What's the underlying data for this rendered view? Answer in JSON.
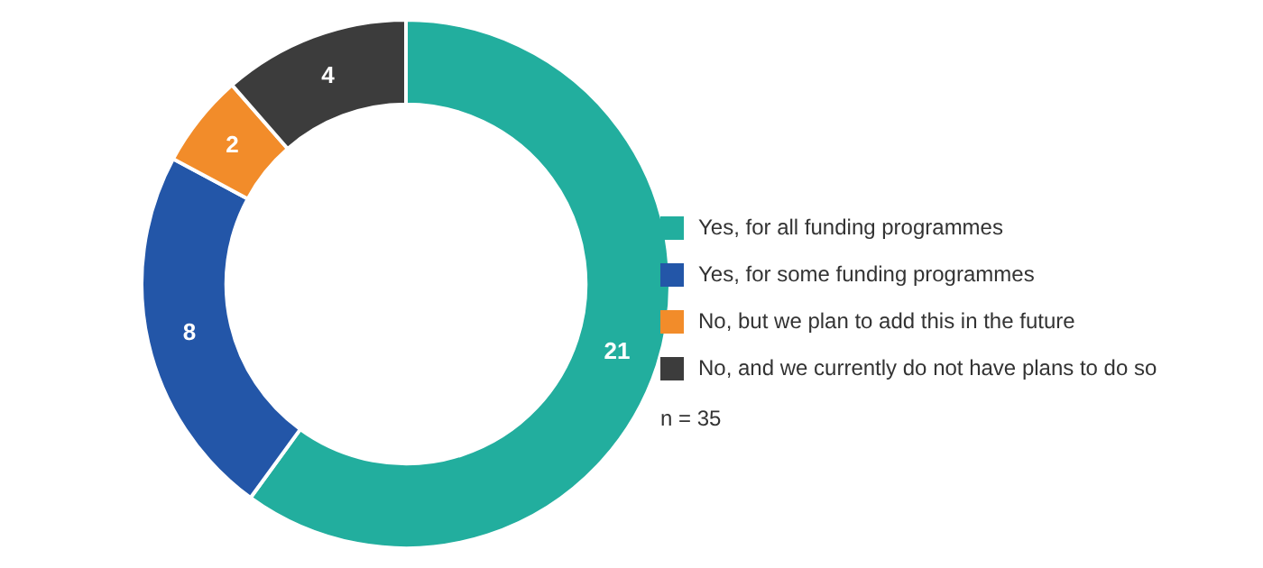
{
  "chart_data": {
    "type": "donut",
    "categories": [
      "Yes, for all funding programmes",
      "Yes, for some funding programmes",
      "No, but we plan to add this in the future",
      "No, and we currently do not have plans to do so"
    ],
    "values": [
      21,
      8,
      2,
      4
    ],
    "colors": [
      "#22ae9e",
      "#2356a8",
      "#f28c2a",
      "#3c3c3c"
    ],
    "data_labels": true,
    "legend": "right",
    "annotations": [
      "n = 35"
    ]
  }
}
